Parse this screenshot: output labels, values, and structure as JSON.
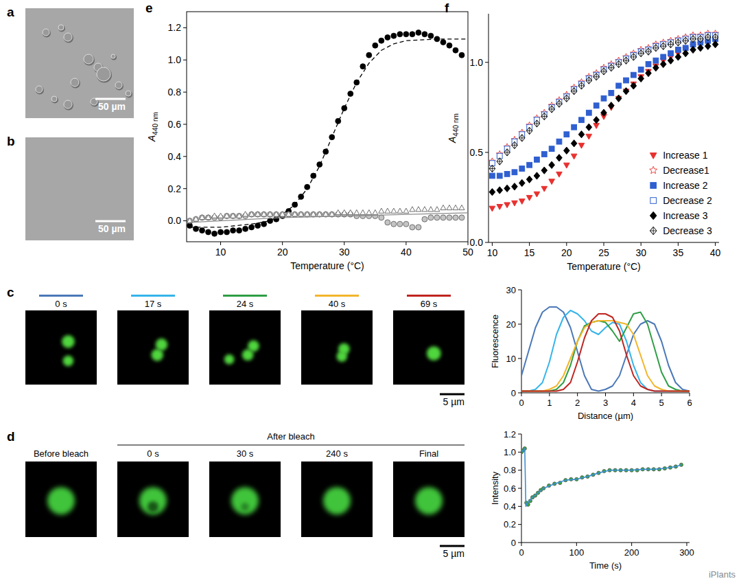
{
  "chart_data": [
    {
      "panel": "e",
      "type": "scatter",
      "xlabel": "Temperature (°C)",
      "ylabel": "A",
      "ylabel_sub": "440 nm",
      "xlim": [
        4.5,
        50
      ],
      "ylim": [
        -0.13,
        1.3
      ],
      "xticks": [
        10,
        20,
        30,
        40,
        50
      ],
      "yticks": [
        {
          "value": 0,
          "label": "0.0"
        },
        0.2,
        0.4,
        0.6,
        0.8,
        {
          "value": 1,
          "label": "1.0"
        },
        1.2
      ],
      "series": [
        {
          "color": "#000000",
          "marker": "circle",
          "x": [
            5,
            6,
            7,
            8,
            9,
            10,
            11,
            12,
            13,
            14,
            15,
            16,
            17,
            18,
            19,
            20,
            21,
            22,
            23,
            24,
            25,
            26,
            27,
            28,
            29,
            30,
            31,
            32,
            33,
            34,
            35,
            36,
            37,
            38,
            39,
            40,
            41,
            42,
            43,
            44,
            45,
            46,
            47,
            48,
            49
          ],
          "values": [
            -0.03,
            -0.05,
            -0.06,
            -0.07,
            -0.08,
            -0.07,
            -0.07,
            -0.06,
            -0.06,
            -0.05,
            -0.04,
            -0.03,
            -0.02,
            0.0,
            0.01,
            0.03,
            0.06,
            0.1,
            0.15,
            0.21,
            0.28,
            0.35,
            0.43,
            0.52,
            0.62,
            0.7,
            0.79,
            0.86,
            0.96,
            1.03,
            1.09,
            1.12,
            1.14,
            1.15,
            1.16,
            1.16,
            1.16,
            1.17,
            1.16,
            1.15,
            1.13,
            1.11,
            1.09,
            1.06,
            1.03
          ]
        },
        {
          "type": "line",
          "line_style": "dashed",
          "color": "#000000",
          "x": [
            5,
            10,
            15,
            18,
            20,
            22,
            24,
            26,
            28,
            30,
            32,
            34,
            36,
            38,
            40,
            45,
            50
          ],
          "values": [
            -0.04,
            -0.04,
            -0.02,
            0.0,
            0.04,
            0.1,
            0.2,
            0.34,
            0.52,
            0.7,
            0.86,
            0.98,
            1.06,
            1.1,
            1.12,
            1.13,
            1.13
          ]
        },
        {
          "color": "#c4c4c4",
          "marker": "circle",
          "x": [
            5,
            6,
            7,
            8,
            9,
            10,
            11,
            12,
            13,
            14,
            15,
            16,
            17,
            18,
            19,
            20,
            21,
            22,
            23,
            24,
            25,
            26,
            27,
            28,
            29,
            30,
            31,
            32,
            33,
            34,
            35,
            36,
            37,
            38,
            39,
            40,
            41,
            42,
            43,
            44,
            45,
            46,
            47,
            48,
            49
          ],
          "values": [
            0.0,
            0.01,
            0.02,
            0.02,
            0.02,
            0.02,
            0.03,
            0.03,
            0.03,
            0.03,
            0.04,
            0.04,
            0.04,
            0.04,
            0.04,
            0.04,
            0.04,
            0.04,
            0.04,
            0.04,
            0.04,
            0.04,
            0.04,
            0.04,
            0.04,
            0.04,
            0.04,
            0.03,
            0.03,
            0.03,
            0.03,
            0.02,
            -0.01,
            -0.02,
            -0.02,
            -0.02,
            -0.04,
            -0.04,
            0.01,
            0.02,
            0.02,
            0.02,
            0.02,
            0.02,
            0.02
          ]
        },
        {
          "color": "#6e6e6e",
          "marker": "triangle-open",
          "x": [
            5,
            6,
            7,
            8,
            9,
            10,
            11,
            12,
            13,
            14,
            15,
            16,
            17,
            18,
            19,
            20,
            21,
            22,
            23,
            24,
            25,
            26,
            27,
            28,
            29,
            30,
            31,
            32,
            33,
            34,
            35,
            36,
            37,
            38,
            39,
            40,
            41,
            42,
            43,
            44,
            45,
            46,
            47,
            48,
            49
          ],
          "values": [
            0.0,
            0.01,
            0.02,
            0.02,
            0.03,
            0.03,
            0.03,
            0.03,
            0.03,
            0.04,
            0.04,
            0.04,
            0.04,
            0.04,
            0.04,
            0.04,
            0.04,
            0.04,
            0.04,
            0.04,
            0.04,
            0.04,
            0.04,
            0.04,
            0.05,
            0.05,
            0.05,
            0.05,
            0.05,
            0.05,
            0.05,
            0.06,
            0.06,
            0.06,
            0.06,
            0.06,
            0.07,
            0.07,
            0.07,
            0.07,
            0.07,
            0.08,
            0.08,
            0.08,
            0.08
          ]
        },
        {
          "type": "line",
          "line_style": "solid",
          "color": "#8c8c8c",
          "x": [
            5,
            20,
            35,
            50
          ],
          "values": [
            -0.01,
            0.02,
            0.035,
            0.05
          ]
        }
      ]
    },
    {
      "panel": "f",
      "type": "scatter",
      "xlabel": "Temperature (°C)",
      "ylabel": "A",
      "ylabel_sub": "440 nm",
      "legend": "lower right",
      "xlim": [
        9.5,
        40.5
      ],
      "ylim": [
        0,
        1.27
      ],
      "xticks": [
        10,
        15,
        20,
        25,
        30,
        35,
        40
      ],
      "yticks": [
        {
          "value": 0,
          "label": "0.0"
        },
        0.5,
        {
          "value": 1,
          "label": "1.0"
        }
      ],
      "x": [
        10,
        11,
        12,
        13,
        14,
        15,
        16,
        17,
        18,
        19,
        20,
        21,
        22,
        23,
        24,
        25,
        26,
        27,
        28,
        29,
        30,
        31,
        32,
        33,
        34,
        35,
        36,
        37,
        38,
        39,
        40
      ],
      "series": [
        {
          "name": "Increase 1",
          "color": "#e8312f",
          "marker": "triangle-down",
          "values": [
            0.19,
            0.2,
            0.21,
            0.22,
            0.23,
            0.25,
            0.27,
            0.3,
            0.34,
            0.38,
            0.43,
            0.48,
            0.54,
            0.59,
            0.65,
            0.7,
            0.75,
            0.8,
            0.84,
            0.88,
            0.92,
            0.95,
            0.98,
            1.01,
            1.03,
            1.05,
            1.07,
            1.09,
            1.1,
            1.11,
            1.12
          ]
        },
        {
          "name": "Decrease1",
          "color": "#e8312f",
          "marker": "star-open",
          "values": [
            0.45,
            0.49,
            0.53,
            0.57,
            0.61,
            0.65,
            0.69,
            0.72,
            0.76,
            0.79,
            0.82,
            0.86,
            0.89,
            0.92,
            0.94,
            0.97,
            0.99,
            1.01,
            1.03,
            1.05,
            1.07,
            1.08,
            1.1,
            1.11,
            1.12,
            1.13,
            1.14,
            1.15,
            1.15,
            1.16,
            1.16
          ]
        },
        {
          "name": "Increase 2",
          "color": "#2f5fd0",
          "marker": "square",
          "values": [
            0.37,
            0.37,
            0.38,
            0.39,
            0.41,
            0.43,
            0.46,
            0.49,
            0.52,
            0.56,
            0.6,
            0.64,
            0.68,
            0.72,
            0.76,
            0.8,
            0.83,
            0.87,
            0.9,
            0.93,
            0.96,
            0.99,
            1.01,
            1.03,
            1.05,
            1.07,
            1.08,
            1.1,
            1.11,
            1.12,
            1.13
          ]
        },
        {
          "name": "Decrease 2",
          "color": "#2f5fd0",
          "marker": "square-open",
          "values": [
            0.44,
            0.48,
            0.52,
            0.56,
            0.6,
            0.64,
            0.68,
            0.71,
            0.75,
            0.78,
            0.81,
            0.85,
            0.88,
            0.91,
            0.93,
            0.96,
            0.98,
            1.0,
            1.02,
            1.04,
            1.06,
            1.07,
            1.09,
            1.1,
            1.11,
            1.12,
            1.13,
            1.14,
            1.14,
            1.15,
            1.15
          ]
        },
        {
          "name": "Increase 3",
          "color": "#000000",
          "marker": "diamond",
          "values": [
            0.28,
            0.29,
            0.3,
            0.31,
            0.33,
            0.35,
            0.37,
            0.4,
            0.43,
            0.47,
            0.51,
            0.55,
            0.6,
            0.64,
            0.68,
            0.72,
            0.76,
            0.8,
            0.84,
            0.87,
            0.91,
            0.94,
            0.97,
            0.99,
            1.01,
            1.03,
            1.05,
            1.07,
            1.08,
            1.09,
            1.1
          ]
        },
        {
          "name": "Decrease 3",
          "color": "#000000",
          "marker": "diamond-cross-open",
          "values": [
            0.41,
            0.45,
            0.5,
            0.54,
            0.58,
            0.62,
            0.66,
            0.7,
            0.74,
            0.77,
            0.8,
            0.84,
            0.87,
            0.9,
            0.92,
            0.95,
            0.97,
            0.99,
            1.01,
            1.03,
            1.05,
            1.06,
            1.08,
            1.09,
            1.1,
            1.11,
            1.12,
            1.13,
            1.13,
            1.14,
            1.14
          ]
        }
      ]
    },
    {
      "type": "line",
      "xlabel": "Distance (µm)",
      "ylabel": "Fluorescence",
      "xlim": [
        0,
        6
      ],
      "ylim": [
        0,
        30
      ],
      "xticks": [
        0,
        1,
        2,
        3,
        4,
        5,
        6
      ],
      "yticks": [
        0,
        10,
        20,
        30
      ],
      "x": [
        0,
        0.25,
        0.5,
        0.75,
        1,
        1.25,
        1.5,
        1.75,
        2,
        2.25,
        2.5,
        2.75,
        3,
        3.25,
        3.5,
        3.75,
        4,
        4.25,
        4.5,
        4.75,
        5,
        5.25,
        5.5,
        5.75,
        6
      ],
      "series": [
        {
          "name": "0 s",
          "color": "#4a78b8",
          "values": [
            5,
            12,
            19,
            23.5,
            25,
            25,
            23.5,
            19,
            12,
            5,
            1,
            0.5,
            1,
            2,
            5,
            11,
            17,
            20,
            21,
            20,
            15,
            8,
            3,
            1,
            0.5
          ]
        },
        {
          "name": "17 s",
          "color": "#35b4ea",
          "values": [
            0.5,
            0.5,
            1,
            3,
            9,
            17,
            22,
            24,
            23,
            21,
            18,
            17,
            19,
            20.5,
            20,
            15,
            8,
            3,
            1,
            0.5,
            0.5,
            0.5,
            0.5,
            0.5,
            0.5
          ]
        },
        {
          "name": "24 s",
          "color": "#2e9e45",
          "values": [
            0.5,
            0.5,
            0.5,
            0.5,
            0.5,
            1,
            3,
            8,
            15,
            19.5,
            20.5,
            21,
            20.5,
            18,
            15,
            19,
            23,
            23.5,
            20,
            13,
            6,
            2,
            1,
            0.5,
            0.5
          ]
        },
        {
          "name": "40 s",
          "color": "#f2b52a",
          "values": [
            0.5,
            0.5,
            0.5,
            0.5,
            1,
            2,
            5,
            10,
            15,
            19,
            20.5,
            21,
            21,
            21,
            20.5,
            20,
            17,
            11,
            5,
            2,
            1,
            0.5,
            0.5,
            0.5,
            0.5
          ]
        },
        {
          "name": "69 s",
          "color": "#c0241f",
          "values": [
            0.5,
            0.5,
            0.5,
            0.5,
            0.5,
            0.5,
            1,
            3,
            9,
            16,
            21,
            23,
            23,
            22,
            18,
            11,
            5,
            2,
            1,
            0.5,
            0.5,
            0.5,
            0.5,
            0.5,
            0.5
          ]
        }
      ]
    },
    {
      "type": "scatter",
      "xlabel": "Time (s)",
      "ylabel": "Intensity",
      "xlim": [
        0,
        305
      ],
      "ylim": [
        0,
        1.2
      ],
      "xticks": [
        0,
        100,
        200,
        300
      ],
      "yticks": [
        0,
        0.2,
        0.4,
        0.6,
        0.8,
        {
          "value": 1,
          "label": "1.0"
        },
        1.2
      ],
      "series": [
        {
          "color": "#3aa83a",
          "marker": "circle",
          "x": [
            0,
            3,
            6,
            9,
            12,
            16,
            20,
            25,
            30,
            35,
            40,
            50,
            60,
            70,
            80,
            90,
            100,
            110,
            120,
            130,
            140,
            150,
            160,
            170,
            180,
            190,
            200,
            210,
            220,
            230,
            240,
            250,
            260,
            270,
            280,
            290
          ],
          "values": [
            1.0,
            1.02,
            1.04,
            0.44,
            0.42,
            0.46,
            0.5,
            0.52,
            0.55,
            0.58,
            0.6,
            0.63,
            0.65,
            0.66,
            0.69,
            0.7,
            0.7,
            0.72,
            0.73,
            0.75,
            0.77,
            0.79,
            0.8,
            0.8,
            0.8,
            0.8,
            0.8,
            0.8,
            0.81,
            0.81,
            0.81,
            0.81,
            0.82,
            0.83,
            0.84,
            0.86
          ]
        },
        {
          "type": "line",
          "line_style": "solid",
          "color": "#3b8fd0",
          "x": [
            0,
            6,
            8,
            10,
            20,
            40,
            60,
            80,
            100,
            120,
            140,
            160,
            180,
            200,
            220,
            240,
            260,
            280,
            290
          ],
          "values": [
            1.0,
            1.04,
            0.4,
            0.43,
            0.5,
            0.6,
            0.65,
            0.69,
            0.7,
            0.73,
            0.77,
            0.8,
            0.8,
            0.8,
            0.81,
            0.81,
            0.82,
            0.84,
            0.86
          ]
        }
      ]
    }
  ],
  "images": [
    {
      "panel": "a",
      "scale_bar": "50 µm"
    },
    {
      "panel": "b",
      "scale_bar": "50 µm"
    },
    {
      "panel": "c",
      "scale_bar": "5 µm"
    },
    {
      "panel": "d",
      "frames": [
        "Before bleach",
        "0 s",
        "30 s",
        "240 s",
        "Final"
      ],
      "group_title": "After bleach",
      "scale_bar": "5 µm"
    }
  ],
  "watermark": "iPlants"
}
